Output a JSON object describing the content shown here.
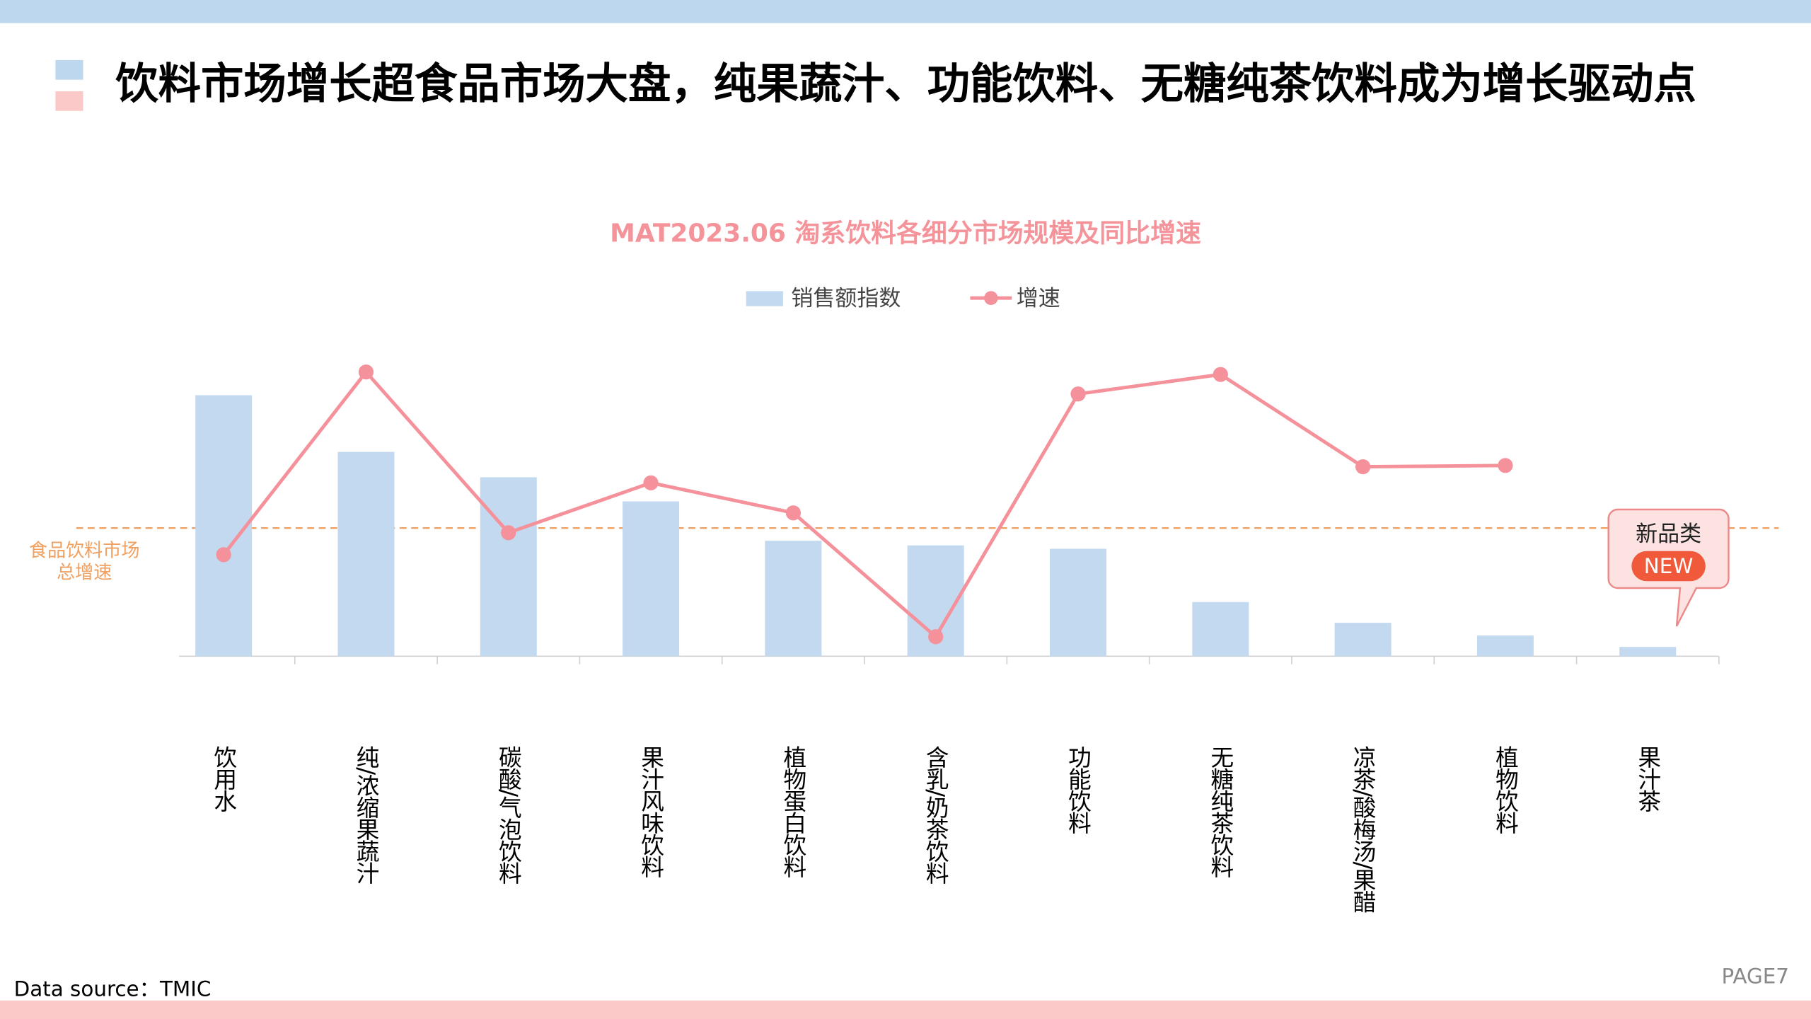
{
  "page": {
    "title": "饮料市场增长超食品市场大盘，纯果蔬汁、功能饮料、无糖纯茶饮料成为增长驱动点",
    "source": "Data source：TMIC",
    "page_number": "PAGE7"
  },
  "chart_data": {
    "type": "bar_line",
    "title": "MAT2023.06  淘系饮料各细分市场规模及同比增速",
    "categories": [
      "饮用水",
      "纯/浓缩果蔬汁",
      "碳酸/气泡饮料",
      "果汁风味饮料",
      "植物蛋白饮料",
      "含乳/奶茶饮料",
      "功能饮料",
      "无糖纯茶饮料",
      "凉茶/酸梅汤/果醋",
      "植物饮料",
      "果汁茶"
    ],
    "series": [
      {
        "name": "销售额指数",
        "type": "bar",
        "color": "#c3d9ef",
        "values": [
          84.3,
          66,
          57.8,
          50,
          37.3,
          35.8,
          34.7,
          17.5,
          10.8,
          6.7,
          3
        ]
      },
      {
        "name": "增速",
        "type": "line",
        "axis": "y2",
        "color": "#f4919a",
        "values": [
          32.8,
          91.8,
          39.9,
          56,
          46.3,
          6.3,
          84.7,
          91,
          61.2,
          61.6,
          null
        ]
      }
    ],
    "ylim": [
      0,
      100
    ],
    "y2lim": [
      0,
      100
    ],
    "reference_line": {
      "label": [
        "食品饮料市场",
        "总增速"
      ],
      "value": 41.4,
      "axis": "y2",
      "color": "#f0a060"
    },
    "annotation": {
      "text": "新品类",
      "badge": "NEW"
    },
    "legend": "top"
  }
}
